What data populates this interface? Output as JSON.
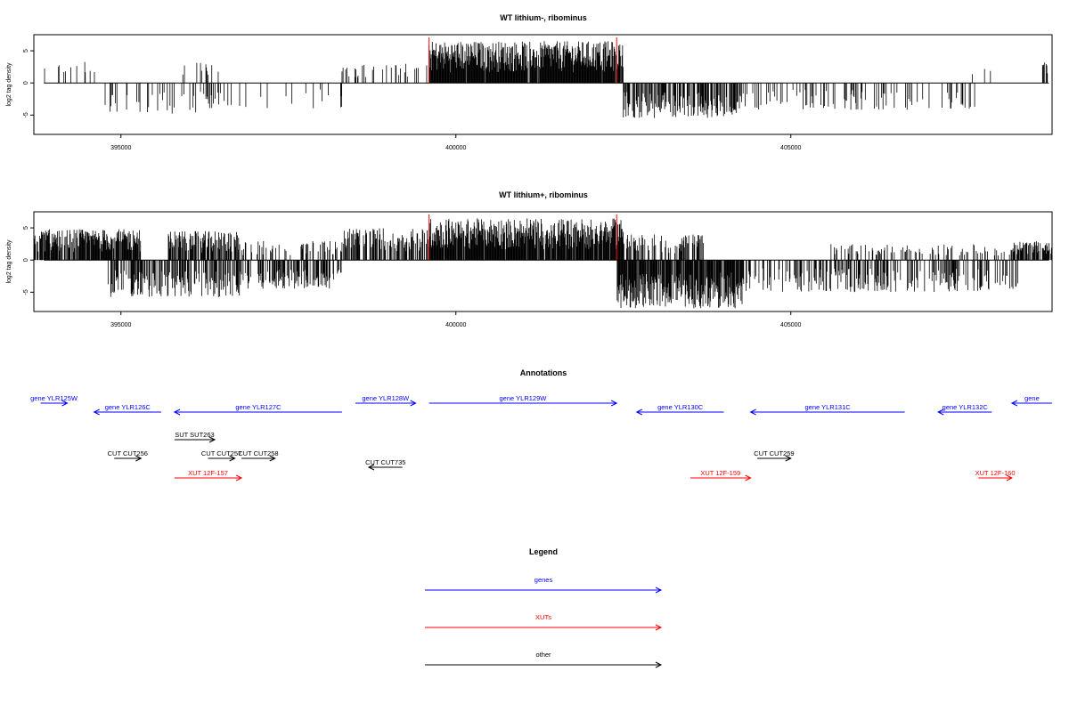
{
  "chart_data": [
    {
      "type": "bar",
      "title": "WT lithium-, ribominus",
      "ylabel": "log2 tag density",
      "xlim": [
        393700,
        408900
      ],
      "ylim": [
        -8,
        7.5
      ],
      "x_ticks": [
        395000,
        400000,
        405000
      ],
      "x_tick_labels": [
        "395000",
        "400000",
        "405000"
      ],
      "y_ticks": [
        5,
        0,
        -5
      ],
      "y_tick_labels": [
        "5",
        "0",
        "-5"
      ],
      "markers": [
        399600,
        402400
      ],
      "marker_color": "#ff0000",
      "density_profile": [
        {
          "start": 393700,
          "end": 394700,
          "direction": "up",
          "max": 3.4,
          "fill": 0.12
        },
        {
          "start": 394700,
          "end": 396800,
          "direction": "down",
          "max": 4.8,
          "fill": 0.22
        },
        {
          "start": 395900,
          "end": 396600,
          "direction": "up",
          "max": 3.2,
          "fill": 0.08
        },
        {
          "start": 396800,
          "end": 398300,
          "direction": "down",
          "max": 4.0,
          "fill": 0.08
        },
        {
          "start": 398300,
          "end": 399600,
          "direction": "up",
          "max": 3.2,
          "fill": 0.15
        },
        {
          "start": 399600,
          "end": 402500,
          "direction": "up",
          "max": 6.5,
          "fill": 0.95
        },
        {
          "start": 402500,
          "end": 404200,
          "direction": "down",
          "max": 5.5,
          "fill": 0.6
        },
        {
          "start": 404200,
          "end": 407800,
          "direction": "down",
          "max": 4.2,
          "fill": 0.2
        },
        {
          "start": 407700,
          "end": 408000,
          "direction": "up",
          "max": 2.3,
          "fill": 0.1
        },
        {
          "start": 408750,
          "end": 408850,
          "direction": "up",
          "max": 3.8,
          "fill": 0.6
        }
      ]
    },
    {
      "type": "bar",
      "title": "WT lithium+, ribominus",
      "ylabel": "log2 tag density",
      "xlim": [
        393700,
        408900
      ],
      "ylim": [
        -8,
        7.5
      ],
      "x_ticks": [
        395000,
        400000,
        405000
      ],
      "x_tick_labels": [
        "395000",
        "400000",
        "405000"
      ],
      "y_ticks": [
        5,
        0,
        -5
      ],
      "y_tick_labels": [
        "5",
        "0",
        "-5"
      ],
      "markers": [
        399600,
        402400
      ],
      "marker_color": "#ff0000",
      "density_profile": [
        {
          "start": 393700,
          "end": 395300,
          "direction": "up",
          "max": 4.8,
          "fill": 0.85
        },
        {
          "start": 394800,
          "end": 396800,
          "direction": "down",
          "max": 5.8,
          "fill": 0.55
        },
        {
          "start": 395700,
          "end": 396800,
          "direction": "up",
          "max": 4.5,
          "fill": 0.7
        },
        {
          "start": 396800,
          "end": 398300,
          "direction": "down",
          "max": 4.5,
          "fill": 0.45
        },
        {
          "start": 396800,
          "end": 398300,
          "direction": "up",
          "max": 3.0,
          "fill": 0.25
        },
        {
          "start": 398300,
          "end": 399600,
          "direction": "up",
          "max": 5.0,
          "fill": 0.55
        },
        {
          "start": 399600,
          "end": 402500,
          "direction": "up",
          "max": 6.5,
          "fill": 0.95
        },
        {
          "start": 402400,
          "end": 404300,
          "direction": "down",
          "max": 7.5,
          "fill": 0.9
        },
        {
          "start": 402500,
          "end": 403700,
          "direction": "up",
          "max": 4.0,
          "fill": 0.45
        },
        {
          "start": 404300,
          "end": 408400,
          "direction": "down",
          "max": 5.0,
          "fill": 0.35
        },
        {
          "start": 405600,
          "end": 408400,
          "direction": "up",
          "max": 2.5,
          "fill": 0.2
        },
        {
          "start": 408300,
          "end": 408900,
          "direction": "up",
          "max": 3.0,
          "fill": 0.7
        }
      ]
    }
  ],
  "annotations": {
    "title": "Annotations",
    "features": [
      {
        "label": "gene YLR125W",
        "category": "genes",
        "start": 393800,
        "end": 394200,
        "strand": "+",
        "row": 0
      },
      {
        "label": "gene YLR126C",
        "category": "genes",
        "start": 394600,
        "end": 395600,
        "strand": "-",
        "row": 1
      },
      {
        "label": "gene YLR127C",
        "category": "genes",
        "start": 395800,
        "end": 398300,
        "strand": "-",
        "row": 1
      },
      {
        "label": "gene YLR128W",
        "category": "genes",
        "start": 398500,
        "end": 399400,
        "strand": "+",
        "row": 0
      },
      {
        "label": "gene YLR129W",
        "category": "genes",
        "start": 399600,
        "end": 402400,
        "strand": "+",
        "row": 0
      },
      {
        "label": "gene YLR130C",
        "category": "genes",
        "start": 402700,
        "end": 404000,
        "strand": "-",
        "row": 1
      },
      {
        "label": "gene YLR131C",
        "category": "genes",
        "start": 404400,
        "end": 406700,
        "strand": "-",
        "row": 1
      },
      {
        "label": "gene YLR132C",
        "category": "genes",
        "start": 407200,
        "end": 408000,
        "strand": "-",
        "row": 1
      },
      {
        "label": "gene",
        "category": "genes",
        "start": 408300,
        "end": 408900,
        "strand": "-",
        "row": 0
      },
      {
        "label": "SUT SUT263",
        "category": "other",
        "start": 395800,
        "end": 396400,
        "strand": "+",
        "row": 3
      },
      {
        "label": "CUT CUT256",
        "category": "other",
        "start": 394900,
        "end": 395300,
        "strand": "+",
        "row": 4
      },
      {
        "label": "CUT CUT257",
        "category": "other",
        "start": 396300,
        "end": 396700,
        "strand": "+",
        "row": 4
      },
      {
        "label": "CUT CUT258",
        "category": "other",
        "start": 396800,
        "end": 397300,
        "strand": "+",
        "row": 4
      },
      {
        "label": "CUT CUT735",
        "category": "other",
        "start": 398700,
        "end": 399200,
        "strand": "-",
        "row": 5
      },
      {
        "label": "CUT CUT259",
        "category": "other",
        "start": 404500,
        "end": 405000,
        "strand": "+",
        "row": 4
      },
      {
        "label": "XUT 12F-157",
        "category": "XUTs",
        "start": 395800,
        "end": 396800,
        "strand": "+",
        "row": 6
      },
      {
        "label": "XUT 12F-159",
        "category": "XUTs",
        "start": 403500,
        "end": 404400,
        "strand": "+",
        "row": 6
      },
      {
        "label": "XUT 12F-160",
        "category": "XUTs",
        "start": 407800,
        "end": 408300,
        "strand": "+",
        "row": 6
      }
    ]
  },
  "legend": {
    "title": "Legend",
    "entries": [
      {
        "label": "genes",
        "color": "#0000ff"
      },
      {
        "label": "XUTs",
        "color": "#ff0000"
      },
      {
        "label": "other",
        "color": "#000000"
      }
    ]
  }
}
